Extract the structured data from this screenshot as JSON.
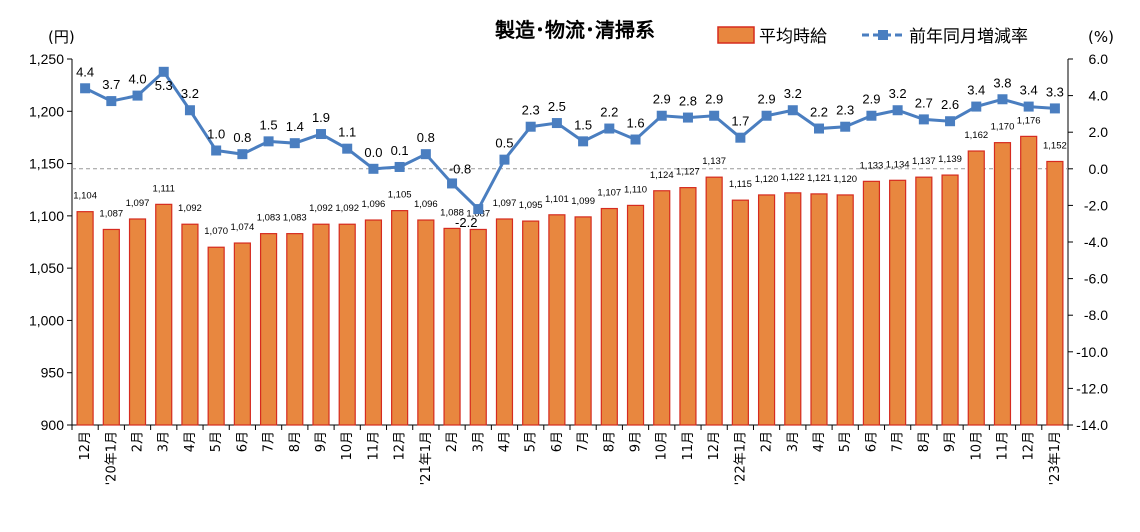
{
  "chart_data": {
    "type": "bar+line",
    "title": "製造･物流･清掃系",
    "left_axis": {
      "unit": "(円)",
      "ylim": [
        900,
        1250
      ],
      "ticks": [
        "900",
        "950",
        "1,000",
        "1,050",
        "1,100",
        "1,150",
        "1,200",
        "1,250"
      ]
    },
    "right_axis": {
      "unit": "(%)",
      "ylim": [
        -14,
        6
      ],
      "ticks": [
        "-14.0",
        "-12.0",
        "-10.0",
        "-8.0",
        "-6.0",
        "-4.0",
        "-2.0",
        "0.0",
        "2.0",
        "4.0",
        "6.0"
      ]
    },
    "categories": [
      "12月",
      "'20年1月",
      "2月",
      "3月",
      "4月",
      "5月",
      "6月",
      "7月",
      "8月",
      "9月",
      "10月",
      "11月",
      "12月",
      "'21年1月",
      "2月",
      "3月",
      "4月",
      "5月",
      "6月",
      "7月",
      "8月",
      "9月",
      "10月",
      "11月",
      "12月",
      "'22年1月",
      "2月",
      "3月",
      "4月",
      "5月",
      "6月",
      "7月",
      "8月",
      "9月",
      "10月",
      "11月",
      "12月",
      "'23年1月"
    ],
    "series": [
      {
        "name": "平均時給",
        "type": "bar",
        "axis": "left",
        "values": [
          1104,
          1087,
          1097,
          1111,
          1092,
          1070,
          1074,
          1083,
          1083,
          1092,
          1092,
          1096,
          1105,
          1096,
          1088,
          1087,
          1097,
          1095,
          1101,
          1099,
          1107,
          1110,
          1124,
          1127,
          1137,
          1115,
          1120,
          1122,
          1121,
          1120,
          1133,
          1134,
          1137,
          1139,
          1162,
          1170,
          1176,
          1152
        ],
        "labels": [
          "1,104",
          "1,087",
          "1,097",
          "1,111",
          "1,092",
          "1,070",
          "1,074",
          "1,083",
          "1,083",
          "1,092",
          "1,092",
          "1,096",
          "1,105",
          "1,096",
          "1,088",
          "1,087",
          "1,097",
          "1,095",
          "1,101",
          "1,099",
          "1,107",
          "1,110",
          "1,124",
          "1,127",
          "1,137",
          "1,115",
          "1,120",
          "1,122",
          "1,121",
          "1,120",
          "1,133",
          "1,134",
          "1,137",
          "1,139",
          "1,162",
          "1,170",
          "1,176",
          "1,152"
        ],
        "fill": "#E8873F",
        "stroke": "#D62B1F"
      },
      {
        "name": "前年同月増減率",
        "type": "line",
        "axis": "right",
        "values": [
          4.4,
          3.7,
          4.0,
          5.3,
          3.2,
          1.0,
          0.8,
          1.5,
          1.4,
          1.9,
          1.1,
          0.0,
          0.1,
          0.8,
          -0.8,
          -2.2,
          0.5,
          2.3,
          2.5,
          1.5,
          2.2,
          1.6,
          2.9,
          2.8,
          2.9,
          1.7,
          2.9,
          3.2,
          2.2,
          2.3,
          2.9,
          3.2,
          2.7,
          2.6,
          3.4,
          3.8,
          3.4,
          3.3
        ],
        "labels": [
          "4.4",
          "3.7",
          "4.0",
          "5.3",
          "3.2",
          "1.0",
          "0.8",
          "1.5",
          "1.4",
          "1.9",
          "1.1",
          "0.0",
          "0.1",
          "0.8",
          "-0.8",
          "-2.2",
          "0.5",
          "2.3",
          "2.5",
          "1.5",
          "2.2",
          "1.6",
          "2.9",
          "2.8",
          "2.9",
          "1.7",
          "2.9",
          "3.2",
          "2.2",
          "2.3",
          "2.9",
          "3.2",
          "2.7",
          "2.6",
          "3.4",
          "3.8",
          "3.4",
          "3.3"
        ],
        "color": "#4A7EC0",
        "marker": "square"
      }
    ],
    "reference_line": {
      "axis": "right",
      "value": 0.0,
      "style": "dashed"
    },
    "legend": "top-right",
    "grid": false
  }
}
